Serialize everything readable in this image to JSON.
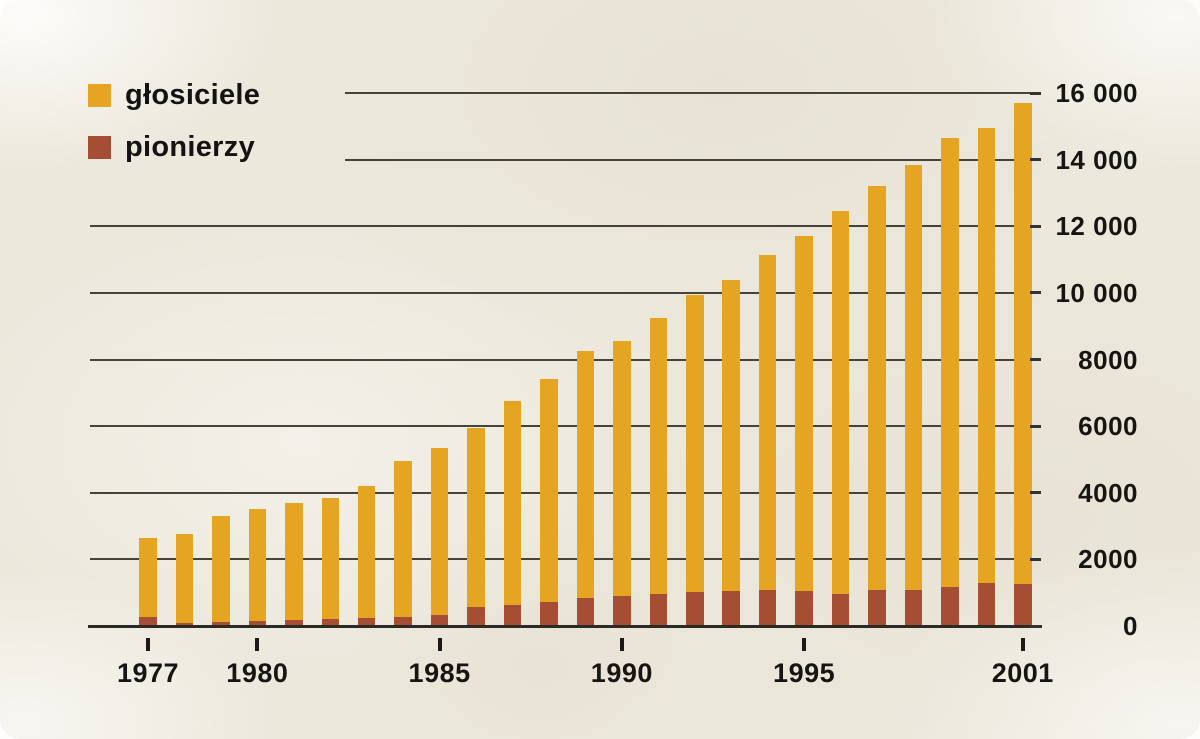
{
  "chart_data": {
    "type": "bar",
    "title": "",
    "xlabel": "",
    "ylabel": "",
    "categories": [
      1977,
      1978,
      1979,
      1980,
      1981,
      1982,
      1983,
      1984,
      1985,
      1986,
      1987,
      1988,
      1989,
      1990,
      1991,
      1992,
      1993,
      1994,
      1995,
      1996,
      1997,
      1998,
      1999,
      2000,
      2001
    ],
    "series": [
      {
        "name": "głosiciele",
        "color": "#E5A522",
        "values": [
          2650,
          2750,
          3300,
          3500,
          3700,
          3850,
          4200,
          4950,
          5350,
          5950,
          6750,
          7400,
          8250,
          8550,
          9250,
          9950,
          10400,
          11150,
          11700,
          12450,
          13200,
          13850,
          14650,
          14950,
          15700
        ]
      },
      {
        "name": "pionierzy",
        "color": "#A54E33",
        "values": [
          280,
          100,
          130,
          160,
          180,
          200,
          230,
          280,
          330,
          560,
          630,
          730,
          830,
          900,
          960,
          1030,
          1050,
          1070,
          1050,
          950,
          1080,
          1070,
          1160,
          1300,
          1270
        ]
      }
    ],
    "stacking": "pionierzy drawn as overlay at base of głosiciele bar",
    "ylim": [
      0,
      16000
    ],
    "yticks": [
      0,
      2000,
      4000,
      6000,
      8000,
      10000,
      12000,
      14000,
      16000
    ],
    "ytick_labels": [
      "0",
      "2000",
      "4000",
      "6000",
      "8000",
      "10 000",
      "12 000",
      "14 000",
      "16 000"
    ],
    "xtick_years": [
      1977,
      1980,
      1985,
      1990,
      1995,
      2001
    ],
    "xtick_labels": [
      "1977",
      "1980",
      "1985",
      "1990",
      "1995",
      "2001"
    ],
    "grid": true,
    "legend_position": "top-left",
    "gridline_color": "#46433b",
    "axis_color": "#2b2a25",
    "background_color": "#ECE8DC",
    "text_color": "#161512"
  }
}
